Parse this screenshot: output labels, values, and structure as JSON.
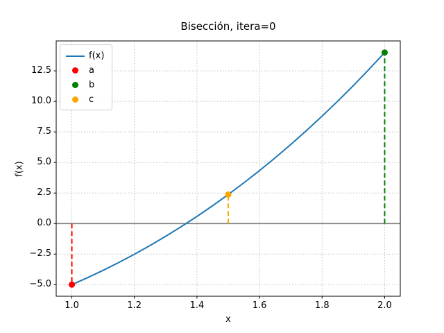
{
  "chart_data": {
    "type": "line",
    "title": "Bisección, itera=0",
    "xlabel": "x",
    "ylabel": "f(x)",
    "xlim": [
      0.95,
      2.05
    ],
    "ylim": [
      -5.95,
      14.95
    ],
    "grid": true,
    "grid_color": "#bdbdbd",
    "background": "#ffffff",
    "xticks": {
      "values": [
        1.0,
        1.2,
        1.4,
        1.6,
        1.8,
        2.0
      ],
      "labels": [
        "1.0",
        "1.2",
        "1.4",
        "1.6",
        "1.8",
        "2.0"
      ]
    },
    "yticks": {
      "values": [
        12.5,
        10.0,
        7.5,
        5.0,
        2.5,
        0.0,
        -2.5,
        -5.0
      ],
      "labels": [
        "12.5",
        "10.0",
        "7.5",
        "5.0",
        "2.5",
        "0.0",
        "−2.5",
        "−5.0"
      ]
    },
    "series": [
      {
        "name": "f(x)",
        "color": "#1f77b4",
        "x": [
          1.0,
          1.05,
          1.1,
          1.15,
          1.2,
          1.25,
          1.3,
          1.35,
          1.4,
          1.45,
          1.5,
          1.55,
          1.6,
          1.65,
          1.7,
          1.75,
          1.8,
          1.85,
          1.9,
          1.95,
          2.0
        ],
        "y": [
          -5.0,
          -4.432,
          -3.829,
          -3.189,
          -2.512,
          -1.797,
          -1.043,
          -0.25,
          0.584,
          1.459,
          2.375,
          3.334,
          4.336,
          5.382,
          6.473,
          7.609,
          8.792,
          10.022,
          11.299,
          12.625,
          14.0
        ]
      }
    ],
    "points": [
      {
        "label": "a",
        "x": 1.0,
        "y": -5.0,
        "color": "#ff0000"
      },
      {
        "label": "b",
        "x": 2.0,
        "y": 14.0,
        "color": "#008000"
      },
      {
        "label": "c",
        "x": 1.5,
        "y": 2.375,
        "color": "#ffa500"
      }
    ],
    "stems": [
      {
        "point": "a",
        "x": 1.0,
        "y0": 0.0,
        "y1": -5.0,
        "color": "#ff0000"
      },
      {
        "point": "b",
        "x": 2.0,
        "y0": 0.0,
        "y1": 14.0,
        "color": "#008000"
      },
      {
        "point": "c",
        "x": 1.5,
        "y0": 0.0,
        "y1": 2.375,
        "color": "#ffa500"
      }
    ],
    "zero_line": {
      "y": 0.0,
      "color": "#808080"
    },
    "legend": {
      "position": "upper-left",
      "entries": [
        {
          "key": "fx",
          "label": "f(x)",
          "marker": "line",
          "color": "#1f77b4"
        },
        {
          "key": "a",
          "label": "a",
          "marker": "dot",
          "color": "#ff0000"
        },
        {
          "key": "b",
          "label": "b",
          "marker": "dot",
          "color": "#008000"
        },
        {
          "key": "c",
          "label": "c",
          "marker": "dot",
          "color": "#ffa500"
        }
      ]
    }
  }
}
